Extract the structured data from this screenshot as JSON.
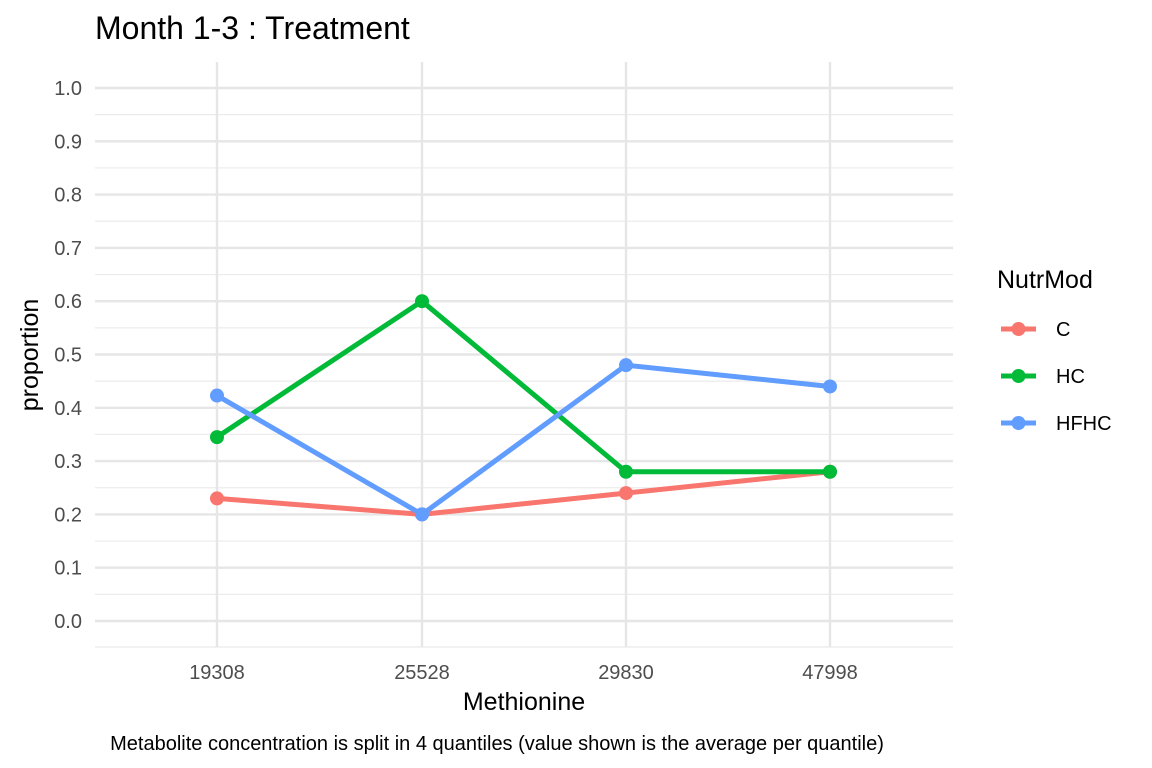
{
  "chart_data": {
    "type": "line",
    "title": "Month 1-3 : Treatment",
    "xlabel": "Methionine",
    "ylabel": "proportion",
    "caption": "Metabolite concentration is split in 4 quantiles (value shown is the average per quantile)",
    "categories": [
      "19308",
      "25528",
      "29830",
      "47998"
    ],
    "y_ticks": [
      "0.0",
      "0.1",
      "0.2",
      "0.3",
      "0.4",
      "0.5",
      "0.6",
      "0.7",
      "0.8",
      "0.9",
      "1.0"
    ],
    "ylim": [
      0,
      1
    ],
    "grid": true,
    "legend": {
      "title": "NutrMod",
      "placement": "right"
    },
    "series": [
      {
        "name": "C",
        "color": "#F8766D",
        "values": [
          0.23,
          0.2,
          0.24,
          0.28
        ]
      },
      {
        "name": "HC",
        "color": "#00BA38",
        "values": [
          0.345,
          0.6,
          0.28,
          0.28
        ]
      },
      {
        "name": "HFHC",
        "color": "#619CFF",
        "values": [
          0.423,
          0.2,
          0.48,
          0.44
        ]
      }
    ]
  }
}
